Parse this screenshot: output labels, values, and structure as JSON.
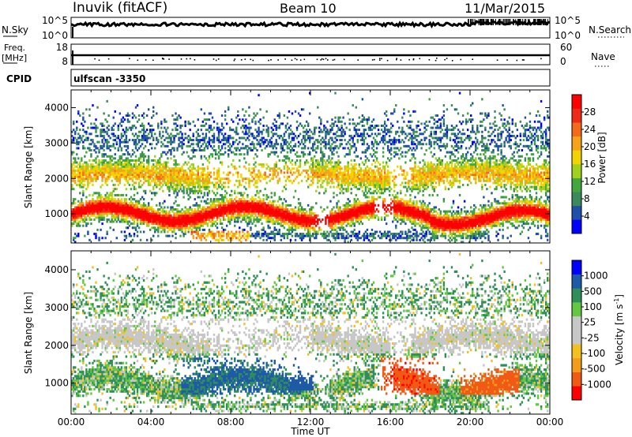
{
  "header": {
    "station": "Inuvik (fitACF)",
    "beam": "Beam 10",
    "date": "11/Mar/2015"
  },
  "top_panels": {
    "nsky_label": "N.Sky",
    "nsky_ticks": [
      "10^5",
      "10^0"
    ],
    "nsearch_label": "N.Search",
    "nsearch_ticks": [
      "10^5",
      "10^0"
    ],
    "freq_label": "Freq.",
    "freq_unit": "[MHz]",
    "freq_ticks": [
      "18",
      "8"
    ],
    "nave_label": "Nave",
    "nave_ticks": [
      "60",
      "0"
    ],
    "cpid_label": "CPID",
    "cpid_value": "ulfscan -3350"
  },
  "colors": {
    "power_scale": [
      "#0000ff",
      "#1f4fa8",
      "#3b8a5a",
      "#44a73e",
      "#9fd11e",
      "#f4d400",
      "#f7a21b",
      "#f46a1a",
      "#ee2b16",
      "#ff0000"
    ],
    "velocity_scale": [
      "#ff0000",
      "#f05a14",
      "#f39c1c",
      "#f3c11f",
      "#c7c7c7",
      "#c7c7c7",
      "#63c742",
      "#2f8f5a",
      "#1f5aa8",
      "#0000ff"
    ]
  },
  "chart_data": [
    {
      "type": "heatmap",
      "quantity": "power",
      "ylabel": "Slant Range [km]",
      "y_ticks": [
        "4000",
        "3000",
        "2000",
        "1000"
      ],
      "ylim": [
        180,
        4500
      ],
      "xlim_hours": [
        0,
        24
      ],
      "colorbar_label": "Power [dB]",
      "colorbar_ticks": [
        "28",
        "24",
        "20",
        "16",
        "12",
        "8",
        "4"
      ],
      "colorbar_range": [
        0,
        32
      ]
    },
    {
      "type": "heatmap",
      "quantity": "velocity",
      "xlabel": "Time UT",
      "ylabel": "Slant Range [km]",
      "x_ticks": [
        "00:00",
        "04:00",
        "08:00",
        "12:00",
        "16:00",
        "20:00",
        "00:00"
      ],
      "y_ticks": [
        "4000",
        "3000",
        "2000",
        "1000"
      ],
      "ylim": [
        180,
        4500
      ],
      "xlim_hours": [
        0,
        24
      ],
      "colorbar_label": "Velocity [m s",
      "colorbar_label_sup": "-1",
      "colorbar_label_end": "]",
      "colorbar_ticks": [
        "1000",
        "500",
        "100",
        "25",
        "-25",
        "-100",
        "-500",
        "-1000"
      ]
    }
  ]
}
